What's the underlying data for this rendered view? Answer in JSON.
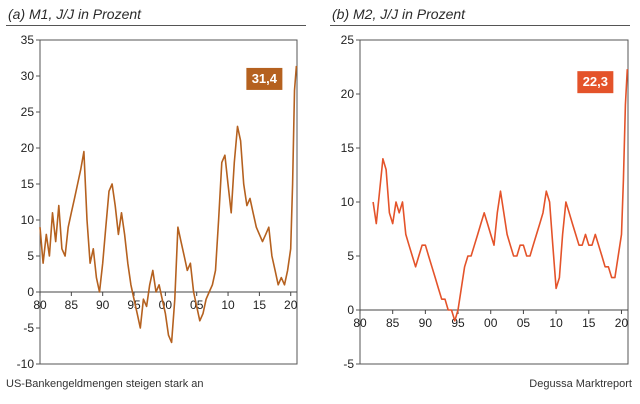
{
  "footer": {
    "caption": "US-Bankengeldmengen steigen stark an",
    "source": "Degussa Marktreport"
  },
  "chart_data": [
    {
      "type": "line",
      "title": "(a) M1, J/J in Prozent",
      "color": "#b5611f",
      "ylim": [
        -10,
        35
      ],
      "yticks": [
        -10,
        -5,
        0,
        5,
        10,
        15,
        20,
        25,
        30,
        35
      ],
      "xticks": [
        "80",
        "85",
        "90",
        "95",
        "00",
        "05",
        "10",
        "15",
        "20"
      ],
      "xlim": [
        1980,
        2021
      ],
      "callout": {
        "label": "31,4",
        "value": 31.4
      },
      "series": [
        {
          "x": [
            1980.0,
            1980.5,
            1981.0,
            1981.5,
            1982.0,
            1982.5,
            1983.0,
            1983.5,
            1984.0,
            1984.5,
            1985.0,
            1985.5,
            1986.0,
            1986.5,
            1987.0,
            1987.5,
            1988.0,
            1988.5,
            1989.0,
            1989.5,
            1990.0,
            1990.5,
            1991.0,
            1991.5,
            1992.0,
            1992.5,
            1993.0,
            1993.5,
            1994.0,
            1994.5,
            1995.0,
            1995.5,
            1996.0,
            1996.5,
            1997.0,
            1997.5,
            1998.0,
            1998.5,
            1999.0,
            1999.5,
            2000.0,
            2000.5,
            2001.0,
            2001.5,
            2002.0,
            2002.5,
            2003.0,
            2003.5,
            2004.0,
            2004.5,
            2005.0,
            2005.5,
            2006.0,
            2006.5,
            2007.0,
            2007.5,
            2008.0,
            2008.5,
            2009.0,
            2009.5,
            2010.0,
            2010.5,
            2011.0,
            2011.5,
            2012.0,
            2012.5,
            2013.0,
            2013.5,
            2014.0,
            2014.5,
            2015.0,
            2015.5,
            2016.0,
            2016.5,
            2017.0,
            2017.5,
            2018.0,
            2018.5,
            2019.0,
            2019.5,
            2020.0,
            2020.3,
            2020.6,
            2020.9
          ],
          "y": [
            9,
            4,
            8,
            5,
            11,
            7,
            12,
            6,
            5,
            9,
            11,
            13,
            15,
            17,
            19.5,
            10,
            4,
            6,
            2,
            0,
            4,
            9,
            14,
            15,
            12,
            8,
            11,
            8,
            4,
            1,
            -1,
            -3,
            -5,
            -1,
            -2,
            1,
            3,
            0,
            1,
            -1,
            -3,
            -6,
            -7,
            -1,
            9,
            7,
            5,
            3,
            4,
            0,
            -2,
            -4,
            -3,
            -1,
            0,
            1,
            3,
            10,
            18,
            19,
            15,
            11,
            18,
            23,
            21,
            15,
            12,
            13,
            11,
            9,
            8,
            7,
            8,
            9,
            5,
            3,
            1,
            2,
            1,
            3,
            6,
            15,
            28,
            31.4
          ]
        }
      ]
    },
    {
      "type": "line",
      "title": "(b) M2, J/J in Prozent",
      "color": "#e4532a",
      "ylim": [
        -5,
        25
      ],
      "yticks": [
        -5,
        0,
        5,
        10,
        15,
        20,
        25
      ],
      "xticks": [
        "80",
        "85",
        "90",
        "95",
        "00",
        "05",
        "10",
        "15",
        "20"
      ],
      "xlim": [
        1980,
        2021
      ],
      "callout": {
        "label": "22,3",
        "value": 22.3
      },
      "series": [
        {
          "x": [
            1982.0,
            1982.5,
            1983.0,
            1983.5,
            1984.0,
            1984.5,
            1985.0,
            1985.5,
            1986.0,
            1986.5,
            1987.0,
            1987.5,
            1988.0,
            1988.5,
            1989.0,
            1989.5,
            1990.0,
            1990.5,
            1991.0,
            1991.5,
            1992.0,
            1992.5,
            1993.0,
            1993.5,
            1994.0,
            1994.5,
            1995.0,
            1995.5,
            1996.0,
            1996.5,
            1997.0,
            1997.5,
            1998.0,
            1998.5,
            1999.0,
            1999.5,
            2000.0,
            2000.5,
            2001.0,
            2001.5,
            2002.0,
            2002.5,
            2003.0,
            2003.5,
            2004.0,
            2004.5,
            2005.0,
            2005.5,
            2006.0,
            2006.5,
            2007.0,
            2007.5,
            2008.0,
            2008.5,
            2009.0,
            2009.5,
            2010.0,
            2010.5,
            2011.0,
            2011.5,
            2012.0,
            2012.5,
            2013.0,
            2013.5,
            2014.0,
            2014.5,
            2015.0,
            2015.5,
            2016.0,
            2016.5,
            2017.0,
            2017.5,
            2018.0,
            2018.5,
            2019.0,
            2019.5,
            2020.0,
            2020.3,
            2020.6,
            2020.9
          ],
          "y": [
            10,
            8,
            11,
            14,
            13,
            9,
            8,
            10,
            9,
            10,
            7,
            6,
            5,
            4,
            5,
            6,
            6,
            5,
            4,
            3,
            2,
            1,
            1,
            0,
            0,
            -1,
            0,
            2,
            4,
            5,
            5,
            6,
            7,
            8,
            9,
            8,
            7,
            6,
            9,
            11,
            9,
            7,
            6,
            5,
            5,
            6,
            6,
            5,
            5,
            6,
            7,
            8,
            9,
            11,
            10,
            6,
            2,
            3,
            7,
            10,
            9,
            8,
            7,
            6,
            6,
            7,
            6,
            6,
            7,
            6,
            5,
            4,
            4,
            3,
            3,
            5,
            7,
            12,
            19,
            22.3
          ]
        }
      ]
    }
  ]
}
